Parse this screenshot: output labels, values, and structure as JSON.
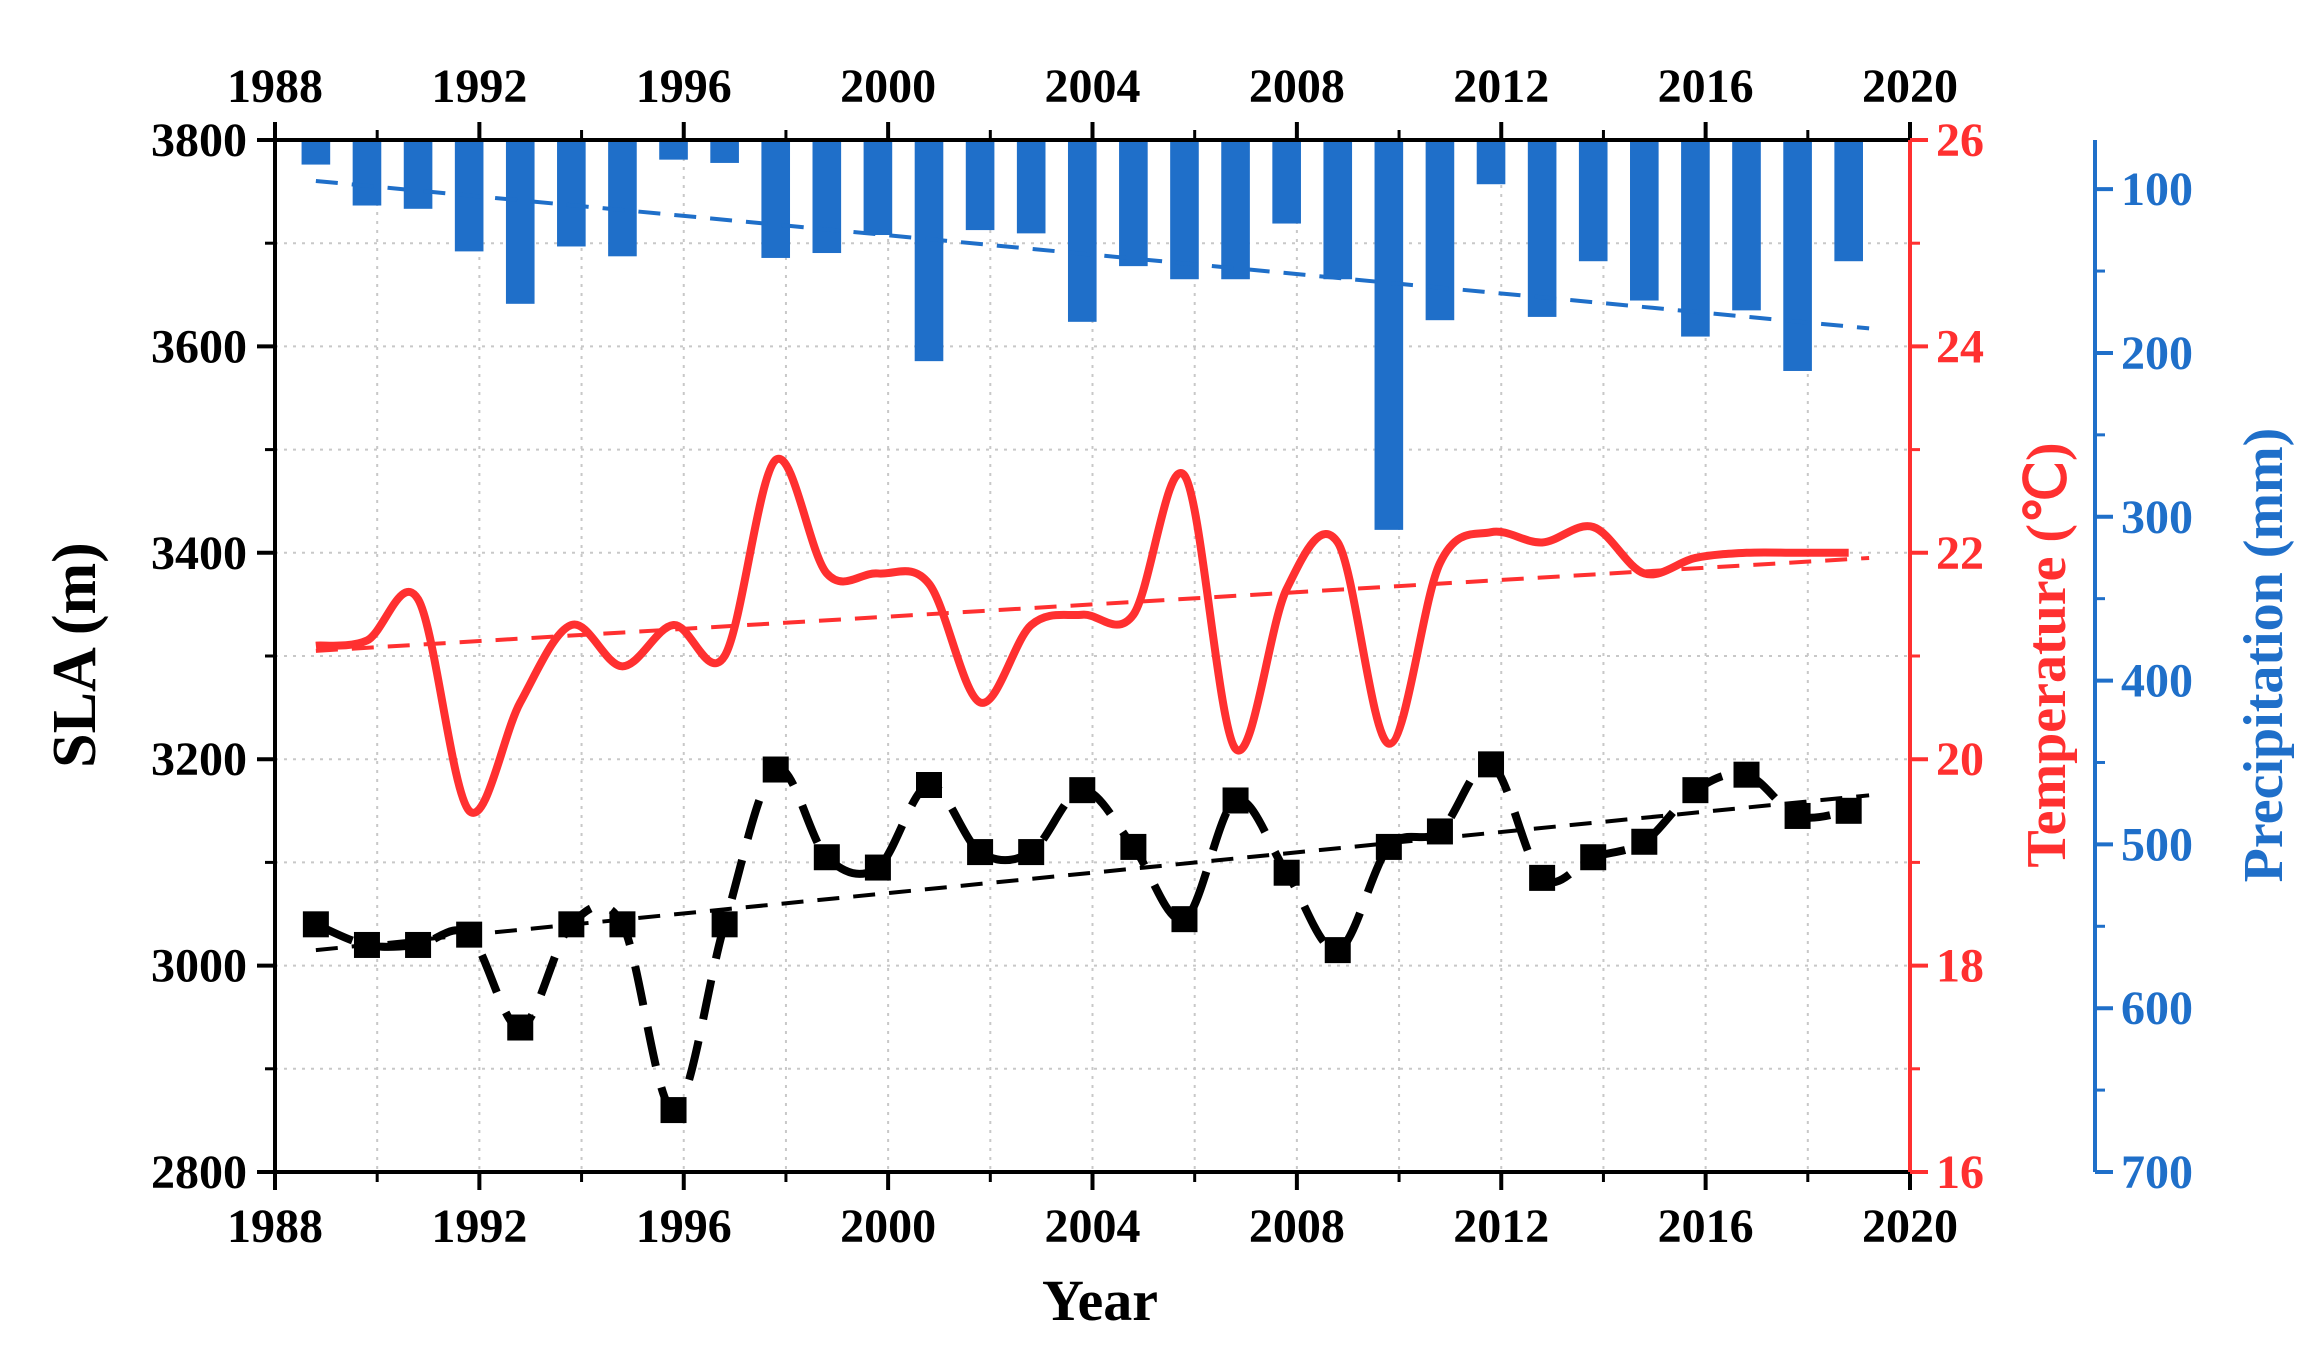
{
  "chart_data": {
    "type": "line",
    "x": [
      1988.8,
      1989.8,
      1990.8,
      1991.8,
      1992.8,
      1993.8,
      1994.8,
      1995.8,
      1996.8,
      1997.8,
      1998.8,
      1999.8,
      2000.8,
      2001.8,
      2002.8,
      2003.8,
      2004.8,
      2005.8,
      2006.8,
      2007.8,
      2008.8,
      2009.8,
      2010.8,
      2011.8,
      2012.8,
      2013.8,
      2014.8,
      2015.8,
      2016.8,
      2017.8,
      2018.8
    ],
    "xlabel": "Year",
    "xlim": [
      1988,
      2020
    ],
    "xticks": [
      "1988",
      "1992",
      "1996",
      "2000",
      "2004",
      "2008",
      "2012",
      "2016",
      "2020"
    ],
    "series": [
      {
        "name": "SLA",
        "axis": "left",
        "style": "dashed-smooth-with-square-markers",
        "color": "#000000",
        "values": [
          3040,
          3020,
          3020,
          3030,
          2940,
          3040,
          3040,
          2860,
          3040,
          3190,
          3105,
          3095,
          3175,
          3110,
          3110,
          3170,
          3115,
          3045,
          3160,
          3090,
          3015,
          3115,
          3130,
          3195,
          3085,
          3105,
          3120,
          3170,
          3185,
          3145,
          3150
        ]
      },
      {
        "name": "Temperature",
        "axis": "right1",
        "style": "solid-smooth",
        "color": "#ff3030",
        "values": [
          21.1,
          21.15,
          21.55,
          19.5,
          20.55,
          21.3,
          20.9,
          21.3,
          21.0,
          22.9,
          21.8,
          21.8,
          21.7,
          20.55,
          21.3,
          21.4,
          21.4,
          22.75,
          20.1,
          21.65,
          22.1,
          20.15,
          21.9,
          22.2,
          22.1,
          22.25,
          21.8,
          21.95,
          22.0,
          22.0,
          22.0
        ]
      },
      {
        "name": "Precipitation",
        "axis": "right2",
        "style": "bar-from-top",
        "color": "#1f6fc9",
        "values": [
          85,
          110,
          112,
          138,
          170,
          135,
          141,
          82,
          84,
          142,
          139,
          128,
          205,
          125,
          127,
          181,
          147,
          155,
          155,
          121,
          155,
          308,
          180,
          97,
          178,
          144,
          168,
          190,
          174,
          211,
          144
        ]
      }
    ],
    "trendlines": [
      {
        "series": "SLA",
        "from": [
          1988.8,
          3015
        ],
        "to": [
          2019.2,
          3165
        ],
        "color": "#000000"
      },
      {
        "series": "Temperature",
        "from": [
          1988.8,
          21.05
        ],
        "to": [
          2019.2,
          21.95
        ],
        "color": "#ff3030"
      },
      {
        "series": "Precipitation",
        "from": [
          1988.8,
          95
        ],
        "to": [
          2019.2,
          185
        ],
        "color": "#1f6fc9"
      }
    ],
    "axes": {
      "left": {
        "title": "SLA (m)",
        "range": [
          2800,
          3800
        ],
        "ticks": [
          "2800",
          "3000",
          "3200",
          "3400",
          "3600",
          "3800"
        ],
        "color": "#000000"
      },
      "right1": {
        "title": "Temperature (℃)",
        "range": [
          16,
          26
        ],
        "ticks": [
          "16",
          "18",
          "20",
          "22",
          "24",
          "26"
        ],
        "color": "#ff3030"
      },
      "right2": {
        "title": "Precipitation (mm)",
        "range": [
          700,
          70
        ],
        "inverted": true,
        "ticks": [
          "100",
          "200",
          "300",
          "400",
          "500",
          "600",
          "700"
        ],
        "color": "#1f6fc9"
      }
    },
    "grid": true
  }
}
